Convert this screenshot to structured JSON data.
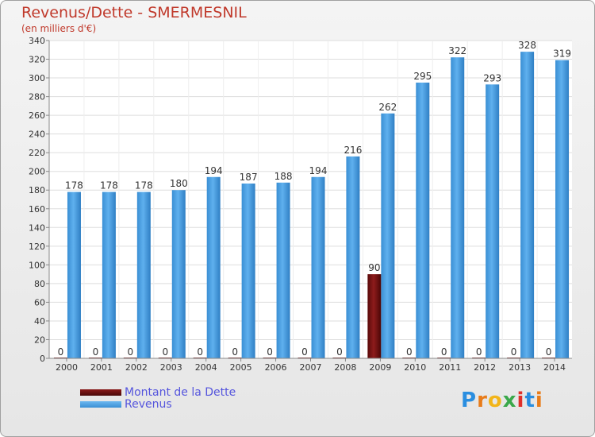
{
  "header": {
    "title": "Revenus/Dette - SMERMESNIL",
    "subtitle": "(en milliers d'€)"
  },
  "legend": {
    "items": [
      {
        "label": "Montant de la Dette",
        "color": "#6b0f0f"
      },
      {
        "label": "Revenus",
        "color": "#4aa3e6"
      }
    ]
  },
  "logo": {
    "text": "Proxiti"
  },
  "chart_data": {
    "type": "bar",
    "categories": [
      "2000",
      "2001",
      "2002",
      "2003",
      "2004",
      "2005",
      "2006",
      "2007",
      "2008",
      "2009",
      "2010",
      "2011",
      "2012",
      "2013",
      "2014"
    ],
    "series": [
      {
        "name": "Montant de la Dette",
        "color": "#6b0f0f",
        "values": [
          0,
          0,
          0,
          0,
          0,
          0,
          0,
          0,
          0,
          90,
          0,
          0,
          0,
          0,
          0
        ]
      },
      {
        "name": "Revenus",
        "color": "#4aa3e6",
        "values": [
          178,
          178,
          178,
          180,
          194,
          187,
          188,
          194,
          216,
          262,
          295,
          322,
          293,
          328,
          319
        ]
      }
    ],
    "ylim": [
      0,
      340
    ],
    "yticks": [
      0,
      20,
      40,
      60,
      80,
      100,
      120,
      140,
      160,
      180,
      200,
      220,
      240,
      260,
      280,
      300,
      320,
      340
    ],
    "grid": true
  }
}
